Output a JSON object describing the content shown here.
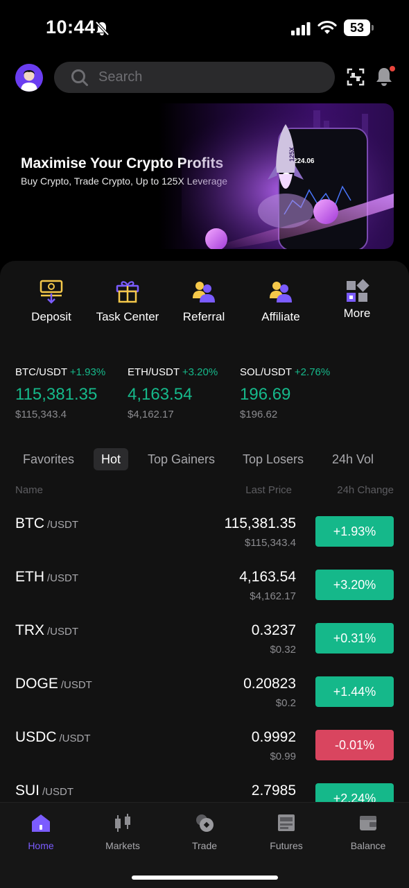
{
  "status_bar": {
    "time": "10:44",
    "battery": "53"
  },
  "header": {
    "search_placeholder": "Search"
  },
  "banner": {
    "title": "Maximise Your Crypto Profits",
    "subtitle": "Buy Crypto, Trade Crypto, Up to 125X Leverage",
    "art_phone_price": "118,224.06",
    "art_rocket_text": "125X"
  },
  "quick_actions": [
    {
      "label": "Deposit",
      "icon": "deposit-icon"
    },
    {
      "label": "Task Center",
      "icon": "gift-icon"
    },
    {
      "label": "Referral",
      "icon": "referral-icon"
    },
    {
      "label": "Affiliate",
      "icon": "affiliate-icon"
    },
    {
      "label": "More",
      "icon": "grid-icon"
    }
  ],
  "tickers": [
    {
      "pair": "BTC/USDT",
      "change": "+1.93%",
      "price": "115,381.35",
      "usd": "$115,343.4"
    },
    {
      "pair": "ETH/USDT",
      "change": "+3.20%",
      "price": "4,163.54",
      "usd": "$4,162.17"
    },
    {
      "pair": "SOL/USDT",
      "change": "+2.76%",
      "price": "196.69",
      "usd": "$196.62"
    }
  ],
  "market_tabs": [
    {
      "label": "Favorites",
      "active": false
    },
    {
      "label": "Hot",
      "active": true
    },
    {
      "label": "Top Gainers",
      "active": false
    },
    {
      "label": "Top Losers",
      "active": false
    },
    {
      "label": "24h Vol",
      "active": false
    }
  ],
  "columns": {
    "name": "Name",
    "last_price": "Last Price",
    "change": "24h Change"
  },
  "market_rows": [
    {
      "base": "BTC",
      "quote": "/USDT",
      "price": "115,381.35",
      "usd": "$115,343.4",
      "change": "+1.93%",
      "direction": "up"
    },
    {
      "base": "ETH",
      "quote": "/USDT",
      "price": "4,163.54",
      "usd": "$4,162.17",
      "change": "+3.20%",
      "direction": "up"
    },
    {
      "base": "TRX",
      "quote": "/USDT",
      "price": "0.3237",
      "usd": "$0.32",
      "change": "+0.31%",
      "direction": "up"
    },
    {
      "base": "DOGE",
      "quote": "/USDT",
      "price": "0.20823",
      "usd": "$0.2",
      "change": "+1.44%",
      "direction": "up"
    },
    {
      "base": "USDC",
      "quote": "/USDT",
      "price": "0.9992",
      "usd": "$0.99",
      "change": "-0.01%",
      "direction": "down"
    },
    {
      "base": "SUI",
      "quote": "/USDT",
      "price": "2.7985",
      "usd": "",
      "change": "+2.24%",
      "direction": "up"
    }
  ],
  "bottom_nav": [
    {
      "label": "Home",
      "icon": "home-icon",
      "active": true
    },
    {
      "label": "Markets",
      "icon": "candlestick-icon",
      "active": false
    },
    {
      "label": "Trade",
      "icon": "trade-icon",
      "active": false
    },
    {
      "label": "Futures",
      "icon": "futures-icon",
      "active": false
    },
    {
      "label": "Balance",
      "icon": "wallet-icon",
      "active": false
    }
  ],
  "colors": {
    "up": "#15b88a",
    "down": "#d9455f",
    "accent": "#7b5cff",
    "background": "#000000",
    "panel": "#121212"
  }
}
